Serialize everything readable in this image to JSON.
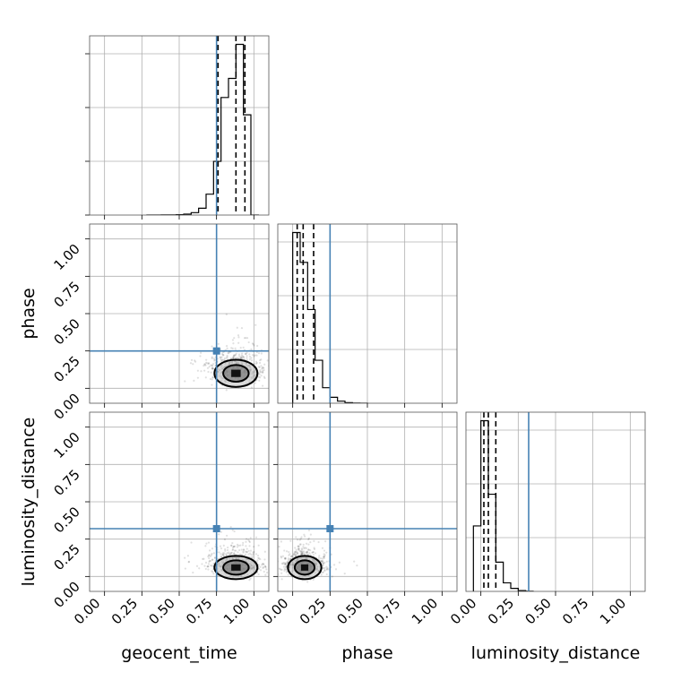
{
  "chart_data": {
    "type": "corner",
    "parameters": [
      "geocent_time",
      "phase",
      "luminosity_distance"
    ],
    "axis_range": [
      -0.1,
      1.1
    ],
    "tick_labels": [
      "0.00",
      "0.25",
      "0.50",
      "0.75",
      "1.00"
    ],
    "tick_values": [
      0.0,
      0.25,
      0.5,
      0.75,
      1.0
    ],
    "grid": true,
    "colors": {
      "truth": "#4682b4",
      "histogram": "#000000",
      "contour": "#000000"
    },
    "truths": {
      "geocent_time": 0.75,
      "phase": 0.25,
      "luminosity_distance": 0.32
    },
    "quantiles": {
      "geocent_time": [
        0.76,
        0.88,
        0.94
      ],
      "phase": [
        0.03,
        0.07,
        0.14
      ],
      "luminosity_distance": [
        0.02,
        0.05,
        0.1
      ]
    },
    "histograms": {
      "geocent_time": {
        "bin_edges": [
          0.28,
          0.33,
          0.38,
          0.43,
          0.48,
          0.53,
          0.58,
          0.63,
          0.68,
          0.73,
          0.78,
          0.83,
          0.88,
          0.93,
          0.98,
          1.03
        ],
        "counts": [
          0,
          1,
          2,
          3,
          6,
          15,
          40,
          115,
          350,
          900,
          1970,
          2290,
          2860,
          1680,
          0.5
        ]
      },
      "phase": {
        "bin_edges": [
          0.0,
          0.05,
          0.1,
          0.15,
          0.2,
          0.25,
          0.3,
          0.35,
          0.4,
          0.45,
          0.5
        ],
        "counts": [
          2860,
          2360,
          1570,
          720,
          260,
          100,
          35,
          10,
          3,
          0.5
        ]
      },
      "luminosity_distance": {
        "bin_edges": [
          -0.05,
          0.0,
          0.05,
          0.1,
          0.15,
          0.2,
          0.25,
          0.3,
          0.35
        ],
        "counts": [
          1300,
          3390,
          1930,
          580,
          170,
          60,
          15,
          3
        ]
      }
    },
    "panels_2d": [
      {
        "x": "geocent_time",
        "y": "phase",
        "peak": [
          0.88,
          0.1
        ],
        "spread": [
          0.09,
          0.07
        ]
      },
      {
        "x": "geocent_time",
        "y": "luminosity_distance",
        "peak": [
          0.88,
          0.06
        ],
        "spread": [
          0.09,
          0.06
        ]
      },
      {
        "x": "phase",
        "y": "luminosity_distance",
        "peak": [
          0.08,
          0.06
        ],
        "spread": [
          0.07,
          0.06
        ]
      }
    ]
  }
}
